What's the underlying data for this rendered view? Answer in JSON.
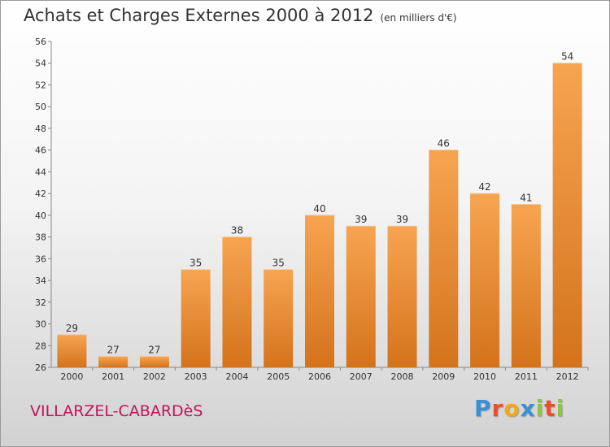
{
  "chart_data": {
    "type": "bar",
    "title": "Achats et Charges Externes 2000 à 2012",
    "subtitle": "(en milliers d'€)",
    "xlabel": "",
    "ylabel": "",
    "categories": [
      "2000",
      "2001",
      "2002",
      "2003",
      "2004",
      "2005",
      "2006",
      "2007",
      "2008",
      "2009",
      "2010",
      "2011",
      "2012"
    ],
    "values": [
      29,
      27,
      27,
      35,
      38,
      35,
      40,
      39,
      39,
      46,
      42,
      41,
      54
    ],
    "ylim": [
      26,
      56
    ],
    "yticks": [
      26,
      28,
      30,
      32,
      34,
      36,
      38,
      40,
      42,
      44,
      46,
      48,
      50,
      52,
      54,
      56
    ],
    "grid": false,
    "bar_color_top": "#f7a451",
    "bar_color_bottom": "#d4731c"
  },
  "commune": "VILLARZEL-CABARDèS",
  "brand": {
    "letters": [
      "P",
      "r",
      "o",
      "x",
      "i",
      "t",
      "i"
    ],
    "colors": [
      "#3b8fd4",
      "#e8502a",
      "#f2a81d",
      "#3b8fd4",
      "#8cc63f",
      "#e8502a",
      "#8cc63f"
    ]
  }
}
